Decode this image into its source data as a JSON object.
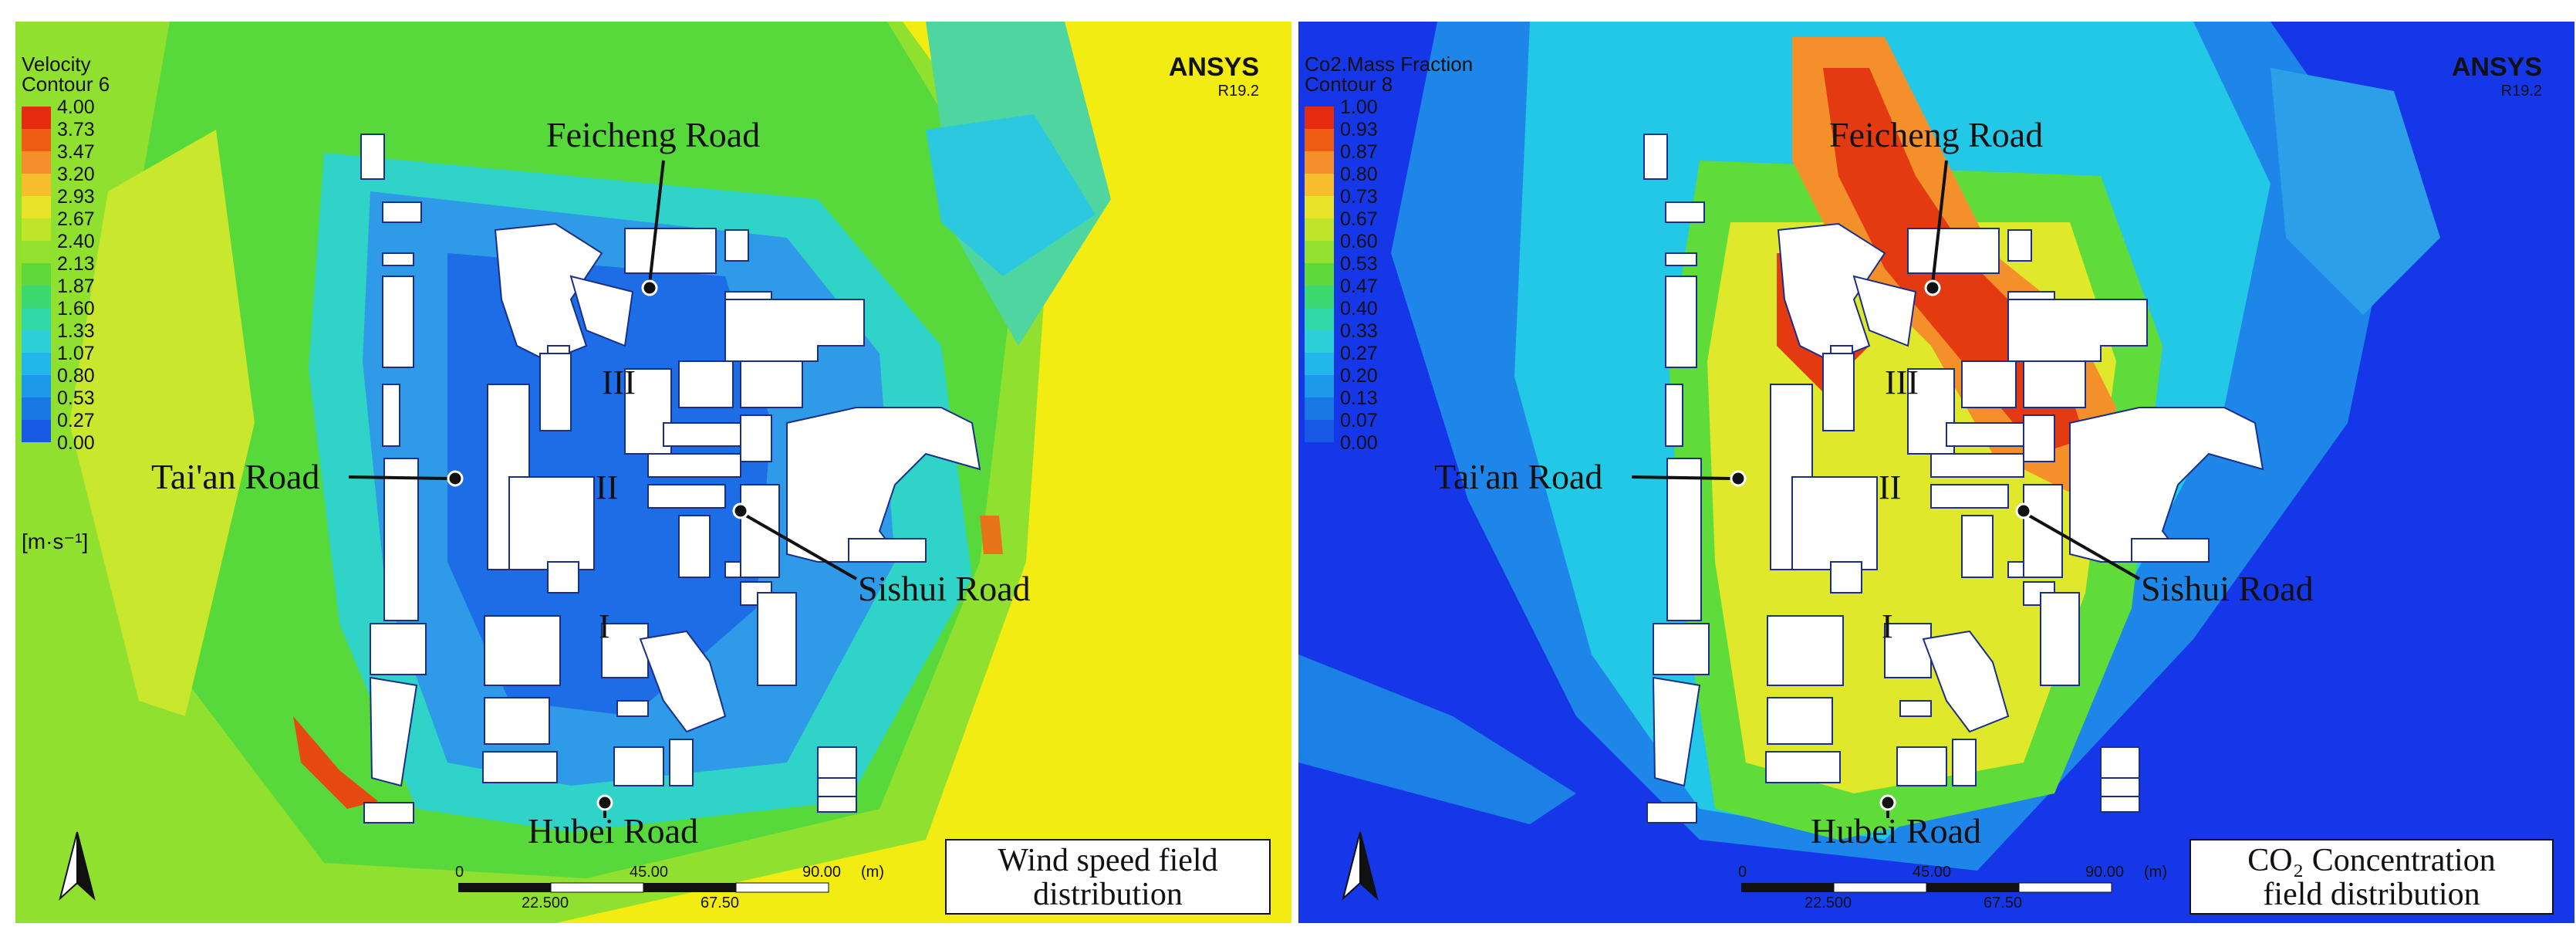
{
  "left_panel": {
    "legend_title_1": "Velocity",
    "legend_title_2": "Contour 6",
    "legend_values": [
      "4.00",
      "3.73",
      "3.47",
      "3.20",
      "2.93",
      "2.67",
      "2.40",
      "2.13",
      "1.87",
      "1.60",
      "1.33",
      "1.07",
      "0.80",
      "0.53",
      "0.27",
      "0.00"
    ],
    "legend_unit": "[m·s⁻¹]",
    "brand": "ANSYS",
    "version": "R19.2",
    "caption_line_1": "Wind speed field",
    "caption_line_2": "distribution",
    "colors": {
      "bg": "#f4ee10",
      "field": "#58d93a",
      "slow": "#2c86e8",
      "cyan": "#22c8e6",
      "red": "#e23a10"
    }
  },
  "right_panel": {
    "legend_title_1": "Co2.Mass Fraction",
    "legend_title_2": "Contour 8",
    "legend_values": [
      "1.00",
      "0.93",
      "0.87",
      "0.80",
      "0.73",
      "0.67",
      "0.60",
      "0.53",
      "0.47",
      "0.40",
      "0.33",
      "0.27",
      "0.20",
      "0.13",
      "0.07",
      "0.00"
    ],
    "brand": "ANSYS",
    "version": "R19.2",
    "caption_line_1": "CO₂ Concentration",
    "caption_line_2": "field distribution",
    "colors": {
      "bg": "#1537e8",
      "plume": "#22c8e6",
      "green": "#5fdc3a",
      "yellow": "#e6ea2a",
      "red": "#e23a10"
    }
  },
  "roads": {
    "feicheng": "Feicheng Road",
    "taian": "Tai'an Road",
    "sishui": "Sishui Road",
    "hubei": "Hubei Road"
  },
  "zones": {
    "one": "I",
    "two": "II",
    "three": "III"
  },
  "scale_bar": {
    "top_labels": [
      "0",
      "45.00",
      "90.00",
      "(m)"
    ],
    "bottom_labels": [
      "22.500",
      "67.50"
    ]
  },
  "legend_colors": [
    "#e62b10",
    "#ee5d12",
    "#f4902a",
    "#f7bd2c",
    "#e9e327",
    "#bfe52a",
    "#93e02f",
    "#5fd93a",
    "#3cd870",
    "#30d8a6",
    "#2ccfd8",
    "#23b6ea",
    "#1c98e8",
    "#1a78e4",
    "#1758e4",
    "#1536e6"
  ]
}
